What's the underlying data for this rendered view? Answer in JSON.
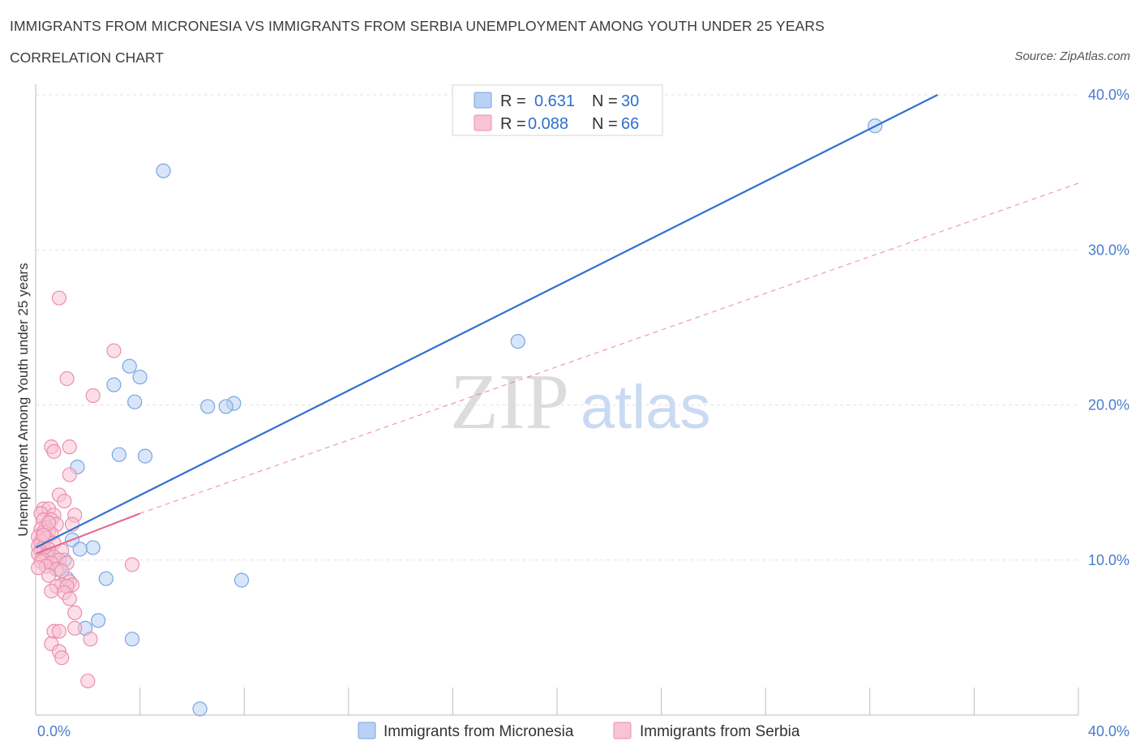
{
  "header": {
    "title": "IMMIGRANTS FROM MICRONESIA VS IMMIGRANTS FROM SERBIA UNEMPLOYMENT AMONG YOUTH UNDER 25 YEARS",
    "subtitle": "CORRELATION CHART",
    "source": "Source: ZipAtlas.com"
  },
  "watermark": {
    "zip": "ZIP",
    "atlas": "atlas"
  },
  "stats_legend": {
    "r_label": "R =",
    "n_label": "N =",
    "rows": [
      {
        "series": "Immigrants from Micronesia",
        "r": "0.631",
        "n": "30"
      },
      {
        "series": "Immigrants from Serbia",
        "r": "0.088",
        "n": "66"
      }
    ]
  },
  "colors": {
    "micronesia_fill": "#b9d1f5",
    "micronesia_stroke": "#7aa5e0",
    "micronesia_line": "#2f72d0",
    "serbia_fill": "#f8c3d3",
    "serbia_stroke": "#eb8fab",
    "serbia_line": "#e56a93",
    "axis_label": "#4a7ccc",
    "grid": "#e3e3e3"
  },
  "chart_data": {
    "type": "scatter",
    "title": "IMMIGRANTS FROM MICRONESIA VS IMMIGRANTS FROM SERBIA UNEMPLOYMENT AMONG YOUTH UNDER 25 YEARS",
    "xlabel": "",
    "ylabel": "Unemployment Among Youth under 25 years",
    "xlim": [
      0,
      40
    ],
    "ylim": [
      0,
      40
    ],
    "x_tick_labels": [
      "0.0%",
      "40.0%"
    ],
    "y_ticks": [
      10,
      20,
      30,
      40
    ],
    "y_tick_labels": [
      "10.0%",
      "20.0%",
      "30.0%",
      "40.0%"
    ],
    "legend": [
      "Immigrants from Micronesia",
      "Immigrants from Serbia"
    ],
    "series": [
      {
        "name": "Immigrants from Micronesia",
        "points": [
          [
            4.9,
            35.1
          ],
          [
            32.2,
            38.0
          ],
          [
            18.5,
            24.1
          ],
          [
            3.6,
            22.5
          ],
          [
            4.0,
            21.8
          ],
          [
            3.0,
            21.3
          ],
          [
            3.8,
            20.2
          ],
          [
            6.6,
            19.9
          ],
          [
            7.6,
            20.1
          ],
          [
            7.3,
            19.9
          ],
          [
            3.2,
            16.8
          ],
          [
            4.2,
            16.7
          ],
          [
            1.6,
            16.0
          ],
          [
            1.4,
            11.3
          ],
          [
            2.2,
            10.8
          ],
          [
            1.7,
            10.7
          ],
          [
            0.6,
            9.9
          ],
          [
            0.8,
            10.0
          ],
          [
            1.1,
            10.0
          ],
          [
            0.5,
            10.3
          ],
          [
            1.2,
            8.8
          ],
          [
            2.7,
            8.8
          ],
          [
            7.9,
            8.7
          ],
          [
            2.4,
            6.1
          ],
          [
            1.9,
            5.6
          ],
          [
            3.7,
            4.9
          ],
          [
            6.3,
            0.4
          ],
          [
            0.4,
            10.5
          ],
          [
            0.9,
            9.4
          ],
          [
            0.2,
            11.0
          ]
        ]
      },
      {
        "name": "Immigrants from Serbia",
        "points": [
          [
            0.9,
            26.9
          ],
          [
            3.0,
            23.5
          ],
          [
            1.2,
            21.7
          ],
          [
            2.2,
            20.6
          ],
          [
            0.6,
            17.3
          ],
          [
            1.3,
            17.3
          ],
          [
            0.7,
            17.0
          ],
          [
            1.3,
            15.5
          ],
          [
            0.9,
            14.2
          ],
          [
            1.1,
            13.8
          ],
          [
            0.3,
            13.3
          ],
          [
            0.5,
            13.3
          ],
          [
            0.2,
            13.0
          ],
          [
            1.5,
            12.9
          ],
          [
            0.7,
            12.9
          ],
          [
            0.3,
            12.6
          ],
          [
            0.6,
            12.6
          ],
          [
            0.8,
            12.3
          ],
          [
            1.4,
            12.3
          ],
          [
            0.4,
            12.1
          ],
          [
            0.2,
            12.0
          ],
          [
            0.5,
            11.9
          ],
          [
            0.3,
            11.8
          ],
          [
            0.6,
            11.7
          ],
          [
            0.1,
            11.5
          ],
          [
            0.4,
            11.4
          ],
          [
            0.2,
            11.2
          ],
          [
            0.7,
            11.1
          ],
          [
            0.1,
            10.9
          ],
          [
            0.3,
            10.8
          ],
          [
            0.5,
            10.7
          ],
          [
            0.2,
            10.5
          ],
          [
            1.0,
            10.6
          ],
          [
            0.1,
            10.4
          ],
          [
            0.4,
            10.3
          ],
          [
            0.7,
            10.2
          ],
          [
            0.3,
            10.0
          ],
          [
            0.9,
            10.0
          ],
          [
            0.2,
            9.9
          ],
          [
            0.6,
            9.8
          ],
          [
            1.2,
            9.8
          ],
          [
            3.7,
            9.7
          ],
          [
            0.4,
            9.6
          ],
          [
            0.1,
            9.5
          ],
          [
            0.8,
            9.4
          ],
          [
            1.0,
            9.3
          ],
          [
            0.5,
            9.0
          ],
          [
            1.3,
            8.6
          ],
          [
            1.0,
            8.4
          ],
          [
            1.4,
            8.4
          ],
          [
            0.8,
            8.3
          ],
          [
            1.2,
            8.3
          ],
          [
            0.6,
            8.0
          ],
          [
            1.1,
            7.9
          ],
          [
            1.3,
            7.5
          ],
          [
            1.5,
            6.6
          ],
          [
            1.5,
            5.6
          ],
          [
            0.7,
            5.4
          ],
          [
            0.9,
            5.4
          ],
          [
            2.1,
            4.9
          ],
          [
            0.6,
            4.6
          ],
          [
            0.9,
            4.1
          ],
          [
            1.0,
            3.7
          ],
          [
            2.0,
            2.2
          ],
          [
            0.3,
            11.6
          ],
          [
            0.5,
            12.4
          ]
        ]
      }
    ],
    "trend_lines": [
      {
        "series": "Immigrants from Micronesia",
        "style": "solid",
        "from": [
          0,
          10.8
        ],
        "to": [
          34.6,
          40.0
        ]
      },
      {
        "series": "Immigrants from Serbia",
        "style": "solid",
        "from": [
          0,
          10.4
        ],
        "to": [
          4.0,
          13.0
        ]
      },
      {
        "series": "Immigrants from Serbia",
        "style": "dashed-extension",
        "from": [
          4.0,
          13.0
        ],
        "to": [
          40.0,
          34.3
        ]
      }
    ]
  }
}
